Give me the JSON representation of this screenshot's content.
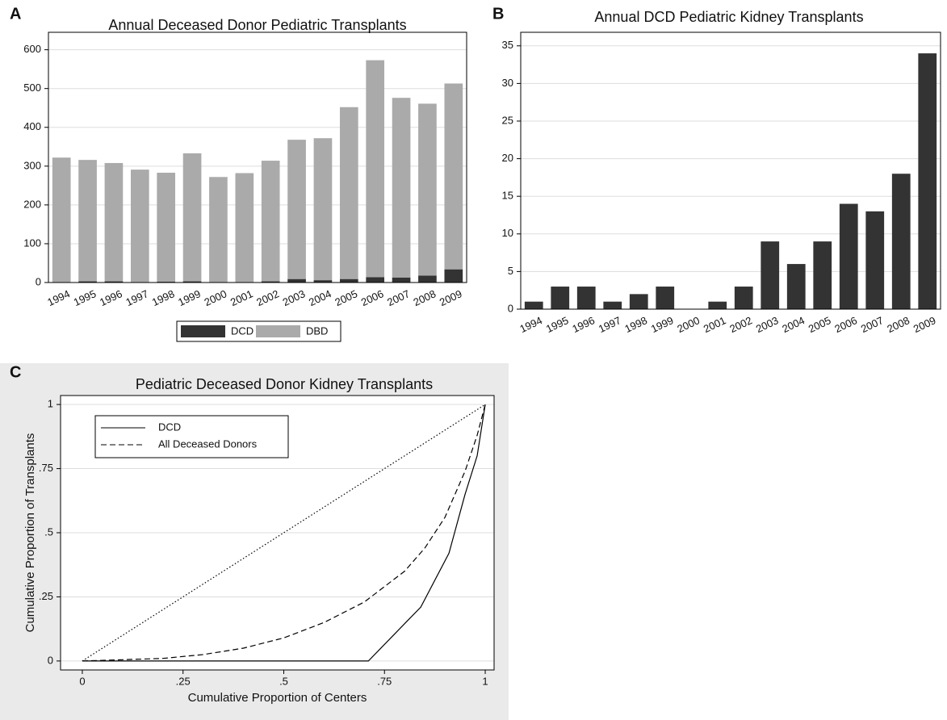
{
  "chart_data": [
    {
      "type": "bar",
      "panel": "A",
      "title": "Annual Deceased Donor Pediatric Transplants",
      "stacked": true,
      "categories": [
        "1994",
        "1995",
        "1996",
        "1997",
        "1998",
        "1999",
        "2000",
        "2001",
        "2002",
        "2003",
        "2004",
        "2005",
        "2006",
        "2007",
        "2008",
        "2009"
      ],
      "series": [
        {
          "name": "DCD",
          "color": "#333333",
          "values": [
            1,
            3,
            3,
            1,
            2,
            3,
            0,
            1,
            3,
            9,
            6,
            9,
            14,
            13,
            18,
            34
          ]
        },
        {
          "name": "DBD",
          "color": "#aaaaaa",
          "values": [
            321,
            313,
            305,
            290,
            281,
            330,
            272,
            281,
            311,
            359,
            366,
            443,
            559,
            463,
            443,
            479
          ]
        }
      ],
      "ylim": [
        0,
        645
      ],
      "yticks": [
        0,
        100,
        200,
        300,
        400,
        500,
        600
      ],
      "grid": true,
      "legend": "bottom"
    },
    {
      "type": "bar",
      "panel": "B",
      "title": "Annual DCD Pediatric Kidney Transplants",
      "categories": [
        "1994",
        "1995",
        "1996",
        "1997",
        "1998",
        "1999",
        "2000",
        "2001",
        "2002",
        "2003",
        "2004",
        "2005",
        "2006",
        "2007",
        "2008",
        "2009"
      ],
      "values": [
        1,
        3,
        3,
        1,
        2,
        3,
        0,
        1,
        3,
        9,
        6,
        9,
        14,
        13,
        18,
        34
      ],
      "color": "#333333",
      "ylim": [
        0,
        36.8
      ],
      "yticks": [
        0,
        5,
        10,
        15,
        20,
        25,
        30,
        35
      ],
      "grid": true
    },
    {
      "type": "line",
      "panel": "C",
      "title": "Pediatric Deceased Donor Kidney Transplants",
      "x_label": "Cumulative Proportion of Centers",
      "y_label": "Cumulative Proportion of Transplants",
      "series": [
        {
          "name": "DCD",
          "color": "#000000",
          "dash": "solid",
          "x": [
            0,
            0.71,
            0.84,
            0.91,
            0.95,
            0.98,
            1
          ],
          "values": [
            0,
            0,
            0.21,
            0.42,
            0.65,
            0.8,
            1
          ]
        },
        {
          "name": "All Deceased Donors",
          "color": "#000000",
          "dash": "dashed",
          "x": [
            0,
            0.1,
            0.2,
            0.3,
            0.4,
            0.5,
            0.6,
            0.7,
            0.8,
            0.85,
            0.9,
            0.95,
            0.98,
            1
          ],
          "values": [
            0,
            0.005,
            0.01,
            0.025,
            0.05,
            0.09,
            0.15,
            0.23,
            0.35,
            0.44,
            0.56,
            0.74,
            0.88,
            1
          ]
        },
        {
          "color": "#000000",
          "dash": "dotted",
          "x": [
            0,
            1
          ],
          "values": [
            0,
            1
          ]
        }
      ],
      "xlim": [
        -0.054,
        1.022
      ],
      "ylim": [
        -0.035,
        1.035
      ],
      "xticks": [
        0,
        {
          "value": 0.25,
          "label": ".25"
        },
        {
          "value": 0.5,
          "label": ".5"
        },
        {
          "value": 0.75,
          "label": ".75"
        },
        1
      ],
      "yticks": [
        0,
        {
          "value": 0.25,
          "label": ".25"
        },
        {
          "value": 0.5,
          "label": ".5"
        },
        {
          "value": 0.75,
          "label": ".75"
        },
        1
      ],
      "grid": true,
      "legend": "top-left"
    }
  ]
}
